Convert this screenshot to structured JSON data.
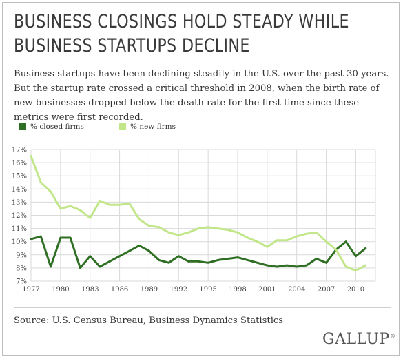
{
  "title_lines": [
    "BUSINESS CLOSINGS HOLD STEADY WHILE",
    "BUSINESS STARTUPS DECLINE"
  ],
  "subtitle": "Business startups have been declining steadily in the U.S. over the past 30 years. But the startup rate crossed a critical threshold in 2008, when the birth rate of new businesses dropped below the death rate for the first time since these metrics were first recorded.",
  "source": "Source: U.S. Census Bureau, Business Dynamics Statistics",
  "brand": "GALLUP",
  "brand_mark": "®",
  "colors": {
    "closed": "#2f6f23",
    "new": "#c2e68a",
    "grid": "#d9d9d9"
  },
  "chart_data": {
    "type": "line",
    "x": [
      1977,
      1978,
      1979,
      1980,
      1981,
      1982,
      1983,
      1984,
      1985,
      1986,
      1987,
      1988,
      1989,
      1990,
      1991,
      1992,
      1993,
      1994,
      1995,
      1996,
      1997,
      1998,
      1999,
      2000,
      2001,
      2002,
      2003,
      2004,
      2005,
      2006,
      2007,
      2008,
      2009,
      2010,
      2011
    ],
    "series": [
      {
        "name": "% closed firms",
        "color": "#2f6f23",
        "values": [
          10.2,
          10.4,
          8.1,
          10.3,
          10.3,
          8.0,
          8.9,
          8.1,
          8.5,
          8.9,
          9.3,
          9.7,
          9.3,
          8.6,
          8.4,
          8.9,
          8.5,
          8.5,
          8.4,
          8.6,
          8.7,
          8.8,
          8.6,
          8.4,
          8.2,
          8.1,
          8.2,
          8.1,
          8.2,
          8.7,
          8.4,
          9.4,
          10.0,
          8.9,
          9.5
        ]
      },
      {
        "name": "% new firms",
        "color": "#c2e68a",
        "values": [
          16.5,
          14.5,
          13.8,
          12.5,
          12.7,
          12.4,
          11.8,
          13.1,
          12.8,
          12.8,
          12.9,
          11.7,
          11.2,
          11.1,
          10.7,
          10.5,
          10.7,
          11.0,
          11.1,
          11.0,
          10.9,
          10.7,
          10.3,
          10.0,
          9.6,
          10.1,
          10.1,
          10.4,
          10.6,
          10.7,
          10.0,
          9.4,
          8.1,
          7.8,
          8.2
        ]
      }
    ],
    "x_ticks": [
      1977,
      1980,
      1983,
      1986,
      1989,
      1992,
      1995,
      1998,
      2001,
      2004,
      2007,
      2010
    ],
    "y_ticks": [
      7,
      8,
      9,
      10,
      11,
      12,
      13,
      14,
      15,
      16,
      17
    ],
    "y_tick_suffix": "%",
    "xlim": [
      1977,
      2012
    ],
    "ylim": [
      7,
      17
    ],
    "grid": true,
    "legend": "top-left"
  }
}
